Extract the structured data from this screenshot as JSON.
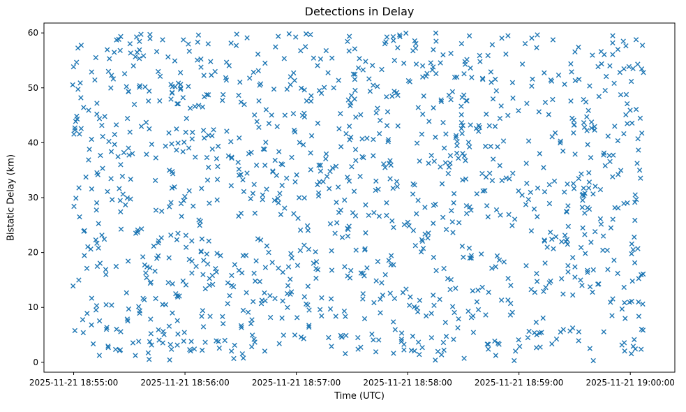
{
  "chart_data": {
    "type": "scatter",
    "title": "Detections in Delay",
    "xlabel": "Time (UTC)",
    "ylabel": "Bistatic Delay (km)",
    "marker": "x",
    "marker_color": "#1f77b4",
    "grid": false,
    "legend": "none",
    "x_tick_labels": [
      "2025-11-21 18:55:00",
      "2025-11-21 18:56:00",
      "2025-11-21 18:57:00",
      "2025-11-21 18:58:00",
      "2025-11-21 18:59:00",
      "2025-11-21 19:00:00"
    ],
    "x_origin_label": "2025-11-21 18:55:00",
    "x_tick_seconds": [
      0,
      60,
      120,
      180,
      240,
      300
    ],
    "xlim_seconds": [
      -16,
      324
    ],
    "y_ticks": [
      0,
      10,
      20,
      30,
      40,
      50,
      60
    ],
    "ylim": [
      -1.8,
      61.8
    ],
    "points": {
      "distribution": "uniform",
      "n": 1250,
      "x_range_seconds": [
        -1,
        308
      ],
      "y_range": [
        0.3,
        60
      ],
      "seed": 42
    }
  }
}
